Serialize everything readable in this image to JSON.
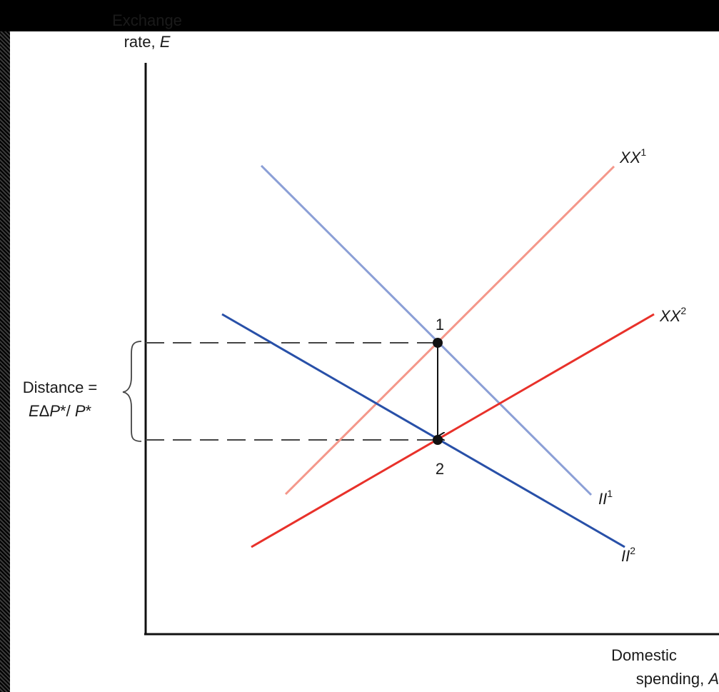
{
  "axes": {
    "y_label_line1": "Exchange",
    "y_label_line2": "rate, ",
    "y_label_var": "E",
    "x_label_line1": "Domestic",
    "x_label_line2": "spending, ",
    "x_label_var": "A"
  },
  "curves": {
    "xx1": {
      "base": "XX",
      "sup": "1",
      "color": "#f4978a"
    },
    "xx2": {
      "base": "XX",
      "sup": "2",
      "color": "#e8312a"
    },
    "ii1": {
      "base": "II",
      "sup": "1",
      "color": "#8b9fd6"
    },
    "ii2": {
      "base": "II",
      "sup": "2",
      "color": "#2850a8"
    }
  },
  "points": {
    "p1": "1",
    "p2": "2"
  },
  "brace": {
    "line1": "Distance =",
    "line2_e": "E",
    "line2_delta": "Δ",
    "line2_p": "P",
    "line2_mid": "*/ ",
    "line2_p2": "P",
    "line2_end": "*"
  }
}
